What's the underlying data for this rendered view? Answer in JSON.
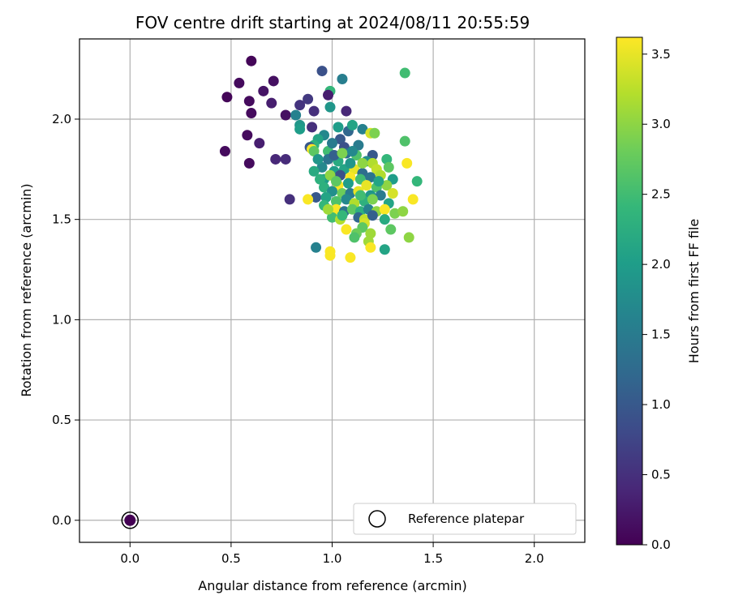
{
  "chart_data": {
    "type": "scatter",
    "title": "FOV centre drift starting at 2024/08/11 20:55:59",
    "xlabel": "Angular distance from reference (arcmin)",
    "ylabel": "Rotation from reference (arcmin)",
    "xlim": [
      -0.25,
      2.25
    ],
    "ylim": [
      -0.11,
      2.4
    ],
    "xticks": [
      0.0,
      0.5,
      1.0,
      1.5,
      2.0
    ],
    "xtick_labels": [
      "0.0",
      "0.5",
      "1.0",
      "1.5",
      "2.0"
    ],
    "yticks": [
      0.0,
      0.5,
      1.0,
      1.5,
      2.0
    ],
    "ytick_labels": [
      "0.0",
      "0.5",
      "1.0",
      "1.5",
      "2.0"
    ],
    "grid": true,
    "legend": {
      "placement": "lower-right",
      "entries": [
        "Reference platepar"
      ]
    },
    "colorbar": {
      "label": "Hours from first FF file",
      "range": [
        0.0,
        3.62
      ],
      "ticks": [
        0.0,
        0.5,
        1.0,
        1.5,
        2.0,
        2.5,
        3.0,
        3.5
      ],
      "tick_labels": [
        "0.0",
        "0.5",
        "1.0",
        "1.5",
        "2.0",
        "2.5",
        "3.0",
        "3.5"
      ],
      "colormap": "viridis"
    },
    "reference_point": {
      "name": "Reference platepar",
      "x": 0.0,
      "y": 0.0,
      "color_value": 0.0
    },
    "points": [
      [
        0.6,
        2.29,
        0.05
      ],
      [
        0.54,
        2.18,
        0.1
      ],
      [
        0.48,
        2.11,
        0.05
      ],
      [
        0.59,
        2.09,
        0.1
      ],
      [
        0.66,
        2.14,
        0.2
      ],
      [
        0.71,
        2.19,
        0.15
      ],
      [
        0.6,
        2.03,
        0.1
      ],
      [
        0.7,
        2.08,
        0.3
      ],
      [
        0.77,
        2.02,
        0.15
      ],
      [
        0.58,
        1.92,
        0.1
      ],
      [
        0.64,
        1.88,
        0.3
      ],
      [
        0.47,
        1.84,
        0.1
      ],
      [
        0.59,
        1.78,
        0.1
      ],
      [
        0.72,
        1.8,
        0.4
      ],
      [
        0.77,
        1.8,
        0.45
      ],
      [
        0.79,
        1.6,
        0.5
      ],
      [
        0.95,
        2.24,
        0.9
      ],
      [
        1.05,
        2.2,
        1.55
      ],
      [
        0.99,
        2.14,
        2.4
      ],
      [
        0.88,
        2.1,
        0.6
      ],
      [
        0.84,
        2.07,
        0.55
      ],
      [
        0.91,
        2.04,
        0.5
      ],
      [
        0.98,
        2.12,
        0.3
      ],
      [
        1.07,
        2.04,
        0.4
      ],
      [
        0.82,
        2.02,
        1.6
      ],
      [
        0.84,
        1.97,
        1.9
      ],
      [
        0.84,
        1.95,
        2.0
      ],
      [
        0.9,
        1.96,
        0.5
      ],
      [
        0.99,
        2.06,
        1.9
      ],
      [
        1.03,
        1.96,
        2.0
      ],
      [
        1.08,
        1.94,
        1.2
      ],
      [
        1.1,
        1.97,
        2.1
      ],
      [
        1.15,
        1.95,
        1.6
      ],
      [
        0.96,
        1.92,
        1.7
      ],
      [
        0.93,
        1.9,
        2.1
      ],
      [
        0.91,
        1.87,
        2.3
      ],
      [
        1.04,
        1.9,
        1.0
      ],
      [
        1.13,
        1.87,
        1.5
      ],
      [
        1.06,
        1.86,
        0.9
      ],
      [
        0.89,
        1.86,
        1.0
      ],
      [
        0.9,
        1.85,
        3.6
      ],
      [
        0.91,
        1.84,
        2.7
      ],
      [
        0.98,
        1.84,
        2.5
      ],
      [
        1.07,
        1.83,
        1.3
      ],
      [
        1.12,
        1.82,
        2.6
      ],
      [
        1.2,
        1.82,
        1.0
      ],
      [
        1.19,
        1.93,
        3.4
      ],
      [
        1.21,
        1.93,
        2.9
      ],
      [
        0.98,
        1.8,
        1.4
      ],
      [
        1.03,
        1.79,
        2.2
      ],
      [
        1.17,
        1.79,
        1.8
      ],
      [
        1.2,
        1.78,
        3.2
      ],
      [
        1.27,
        1.8,
        2.4
      ],
      [
        1.36,
        1.89,
        2.6
      ],
      [
        1.36,
        2.23,
        2.5
      ],
      [
        1.37,
        1.78,
        3.6
      ],
      [
        0.95,
        1.76,
        1.7
      ],
      [
        1.01,
        1.74,
        2.0
      ],
      [
        1.06,
        1.75,
        2.1
      ],
      [
        1.11,
        1.75,
        3.5
      ],
      [
        1.15,
        1.73,
        1.3
      ],
      [
        1.22,
        1.75,
        3.3
      ],
      [
        1.28,
        1.76,
        2.7
      ],
      [
        0.91,
        1.74,
        2.2
      ],
      [
        1.04,
        1.72,
        0.9
      ],
      [
        1.09,
        1.71,
        3.6
      ],
      [
        1.14,
        1.7,
        2.5
      ],
      [
        1.19,
        1.71,
        1.4
      ],
      [
        1.24,
        1.72,
        3.2
      ],
      [
        1.3,
        1.7,
        2.0
      ],
      [
        1.42,
        1.69,
        2.4
      ],
      [
        0.96,
        1.7,
        2.0
      ],
      [
        0.99,
        1.72,
        3.0
      ],
      [
        1.03,
        1.67,
        3.6
      ],
      [
        1.08,
        1.68,
        2.0
      ],
      [
        1.17,
        1.67,
        3.5
      ],
      [
        1.22,
        1.66,
        2.6
      ],
      [
        1.27,
        1.67,
        3.0
      ],
      [
        0.96,
        1.66,
        2.3
      ],
      [
        1.0,
        1.64,
        1.8
      ],
      [
        1.05,
        1.63,
        2.8
      ],
      [
        1.09,
        1.63,
        1.5
      ],
      [
        1.13,
        1.64,
        3.5
      ],
      [
        1.19,
        1.62,
        1.9
      ],
      [
        1.24,
        1.62,
        1.5
      ],
      [
        1.3,
        1.63,
        3.4
      ],
      [
        0.92,
        1.61,
        1.0
      ],
      [
        0.97,
        1.61,
        2.1
      ],
      [
        1.02,
        1.59,
        2.6
      ],
      [
        1.07,
        1.6,
        1.7
      ],
      [
        1.11,
        1.58,
        3.2
      ],
      [
        1.16,
        1.59,
        2.3
      ],
      [
        1.2,
        1.6,
        2.9
      ],
      [
        1.28,
        1.58,
        2.1
      ],
      [
        1.4,
        1.6,
        3.6
      ],
      [
        0.88,
        1.6,
        3.6
      ],
      [
        0.96,
        1.57,
        2.4
      ],
      [
        1.02,
        1.55,
        3.6
      ],
      [
        1.06,
        1.54,
        1.4
      ],
      [
        1.1,
        1.55,
        2.7
      ],
      [
        1.14,
        1.54,
        2.3
      ],
      [
        1.18,
        1.55,
        1.6
      ],
      [
        1.22,
        1.54,
        3.0
      ],
      [
        1.26,
        1.55,
        3.6
      ],
      [
        1.31,
        1.53,
        2.9
      ],
      [
        1.35,
        1.54,
        3.0
      ],
      [
        1.0,
        1.51,
        2.5
      ],
      [
        1.04,
        1.5,
        3.2
      ],
      [
        1.13,
        1.51,
        1.2
      ],
      [
        1.16,
        1.5,
        3.3
      ],
      [
        1.2,
        1.52,
        1.1
      ],
      [
        1.16,
        1.48,
        3.4
      ],
      [
        1.15,
        1.46,
        2.7
      ],
      [
        1.07,
        1.45,
        3.6
      ],
      [
        1.12,
        1.43,
        2.8
      ],
      [
        1.19,
        1.43,
        3.1
      ],
      [
        1.29,
        1.45,
        2.7
      ],
      [
        1.38,
        1.41,
        3.0
      ],
      [
        1.11,
        1.41,
        2.6
      ],
      [
        1.18,
        1.39,
        3.1
      ],
      [
        1.19,
        1.36,
        3.6
      ],
      [
        0.92,
        1.36,
        1.6
      ],
      [
        0.99,
        1.34,
        3.6
      ],
      [
        0.99,
        1.32,
        3.6
      ],
      [
        1.09,
        1.31,
        3.6
      ],
      [
        1.26,
        1.35,
        2.1
      ],
      [
        0.93,
        1.8,
        1.9
      ],
      [
        1.01,
        1.82,
        1.1
      ],
      [
        0.94,
        1.7,
        2.3
      ],
      [
        1.05,
        1.83,
        2.9
      ],
      [
        1.1,
        1.84,
        1.7
      ],
      [
        1.14,
        1.62,
        2.5
      ],
      [
        1.0,
        1.88,
        1.5
      ],
      [
        1.23,
        1.69,
        2.1
      ],
      [
        1.26,
        1.5,
        2.2
      ],
      [
        1.09,
        1.78,
        1.9
      ],
      [
        1.02,
        1.69,
        2.7
      ],
      [
        1.15,
        1.78,
        3.0
      ],
      [
        0.98,
        1.55,
        3.1
      ],
      [
        1.05,
        1.52,
        2.4
      ]
    ]
  }
}
